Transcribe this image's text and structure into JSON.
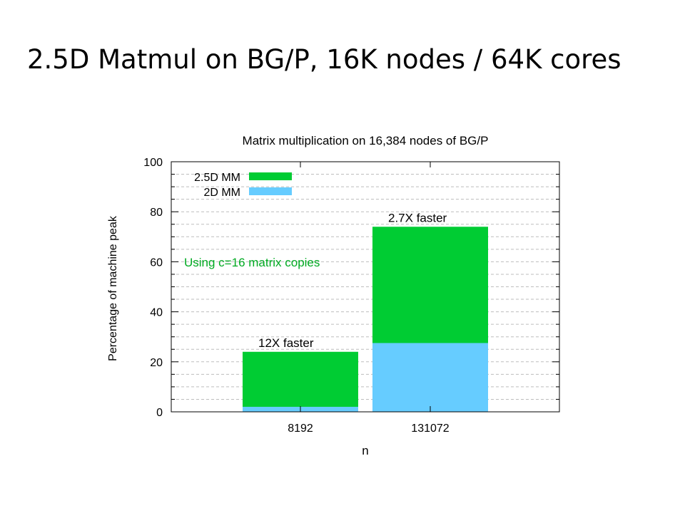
{
  "slide": {
    "title": "2.5D Matmul on BG/P, 16K nodes / 64K cores"
  },
  "chart_data": {
    "type": "bar",
    "stacked": true,
    "title": "Matrix multiplication on 16,384 nodes of BG/P",
    "xlabel": "n",
    "ylabel": "Percentage of machine peak",
    "ylim": [
      0,
      100
    ],
    "yticks": [
      0,
      20,
      40,
      60,
      80,
      100
    ],
    "grid": true,
    "legend": {
      "position": "top-left"
    },
    "categories": [
      "8192",
      "131072"
    ],
    "series": [
      {
        "name": "2.5D MM",
        "values": [
          24,
          74
        ],
        "color": "#00cc33"
      },
      {
        "name": "2D MM",
        "values": [
          2,
          27.5
        ],
        "color": "#66ccff"
      }
    ],
    "bar_annotations": [
      "12X faster",
      "2.7X faster"
    ],
    "note": {
      "text": "Using c=16 matrix copies",
      "color": "#00aa22"
    }
  }
}
